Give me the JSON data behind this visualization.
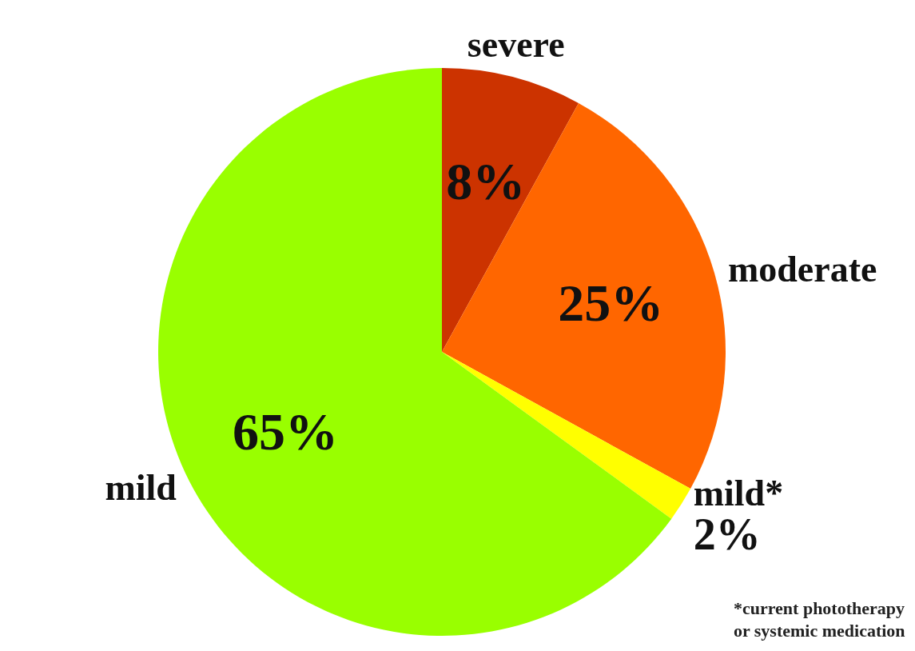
{
  "chart_data": {
    "type": "pie",
    "categories": [
      "severe",
      "moderate",
      "mild*",
      "mild"
    ],
    "values": [
      8,
      25,
      2,
      65
    ],
    "value_labels": [
      "8%",
      "25%",
      "2%",
      "65%"
    ],
    "colors": [
      "#cc3300",
      "#ff6600",
      "#ffff00",
      "#99ff00"
    ],
    "legend": false,
    "annotations": [
      "*current phototherapy\nor systemic medication"
    ]
  }
}
